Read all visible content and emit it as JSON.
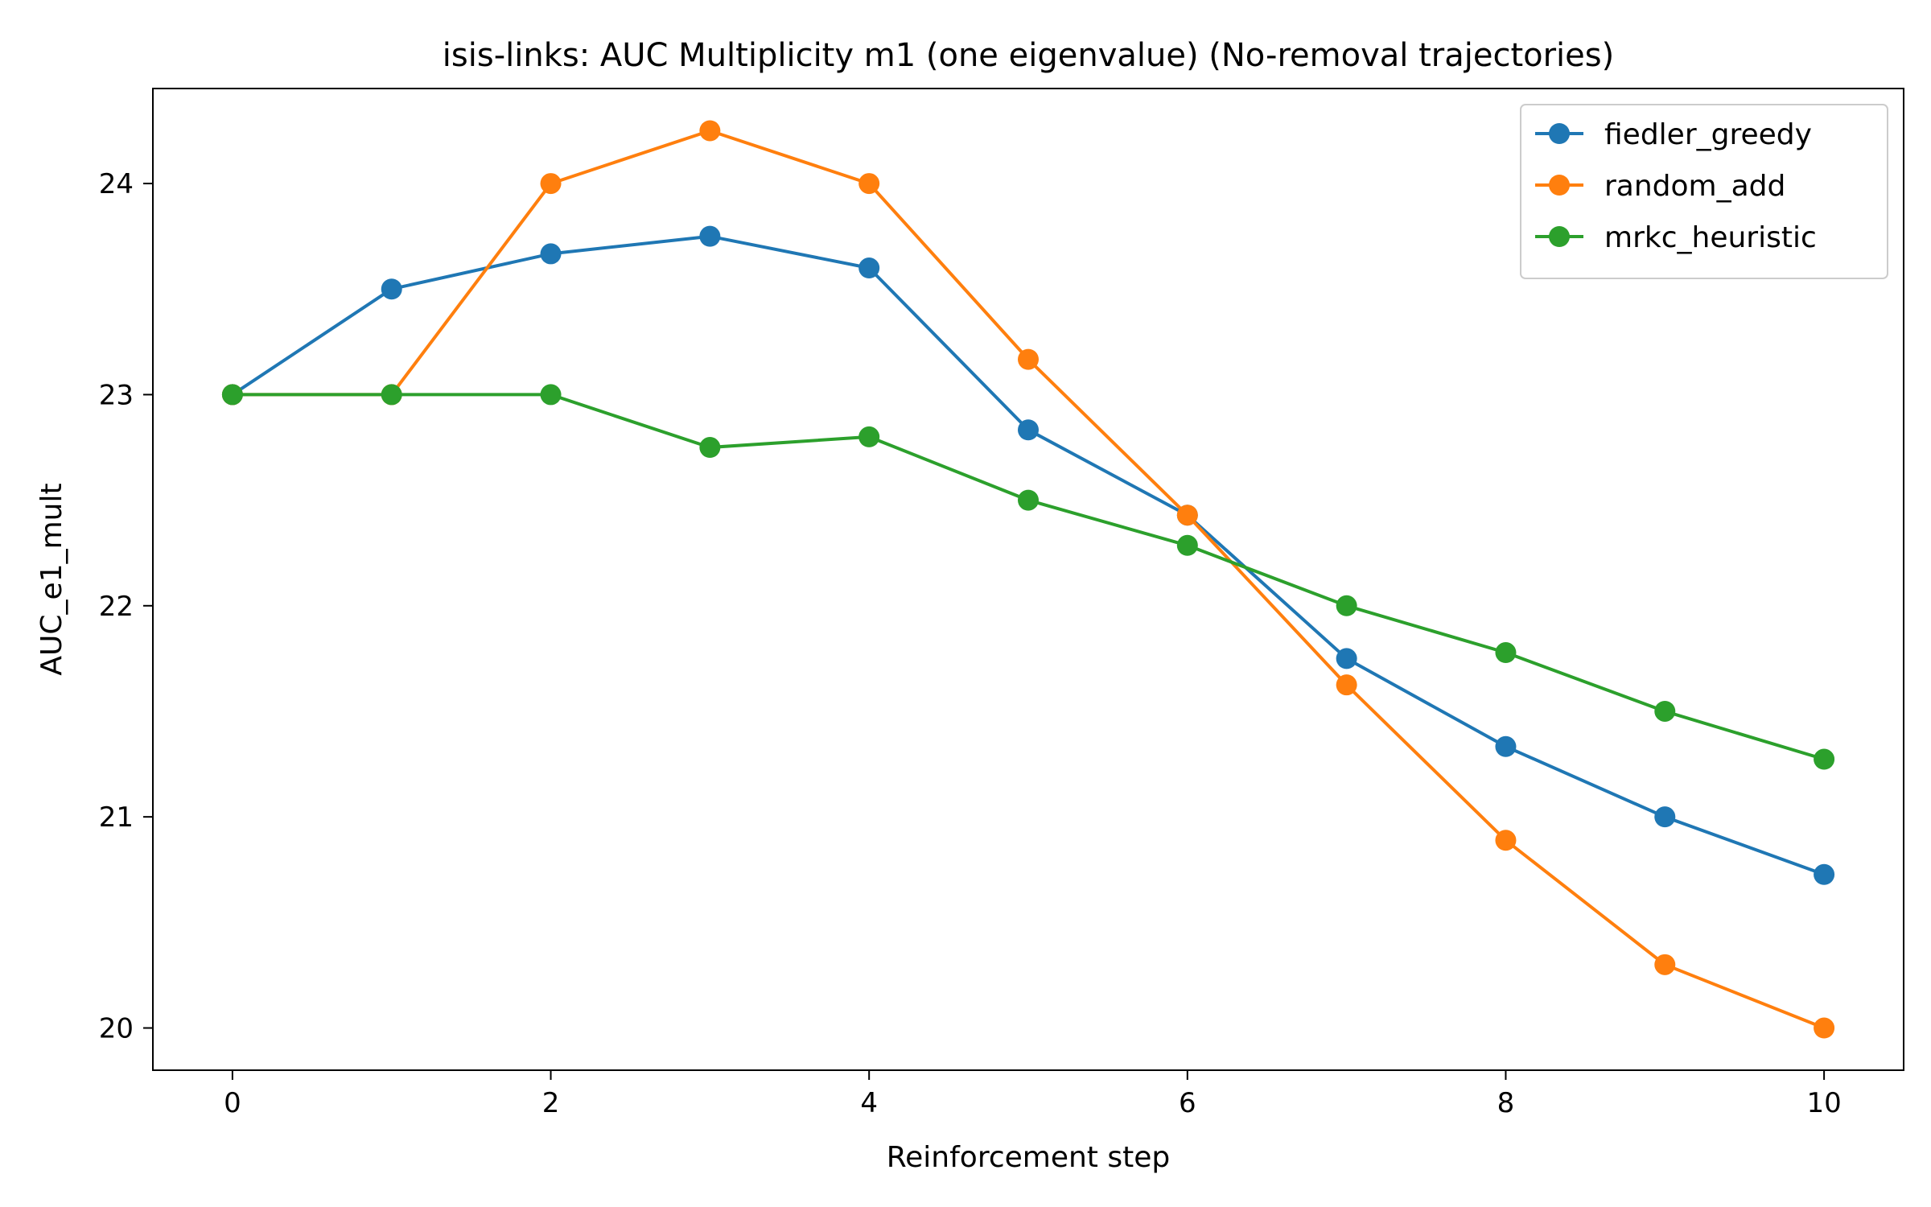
{
  "chart_data": {
    "type": "line",
    "title": "isis-links: AUC Multiplicity m1 (one eigenvalue) (No-removal trajectories)",
    "xlabel": "Reinforcement step",
    "ylabel": "AUC_e1_mult",
    "xlim": [
      -0.5,
      10.5
    ],
    "ylim": [
      19.8,
      24.45
    ],
    "xticks": [
      0,
      2,
      4,
      6,
      8,
      10
    ],
    "yticks": [
      20,
      21,
      22,
      23,
      24
    ],
    "grid": false,
    "legend_position": "top-right",
    "x": [
      0,
      1,
      2,
      3,
      4,
      5,
      6,
      7,
      8,
      9,
      10
    ],
    "series": [
      {
        "name": "fiedler_greedy",
        "color": "#1f77b4",
        "marker": "circle",
        "values": [
          23.0,
          23.5,
          23.667,
          23.75,
          23.6,
          22.833,
          22.429,
          21.75,
          21.333,
          21.0,
          20.727
        ]
      },
      {
        "name": "random_add",
        "color": "#ff7f0e",
        "marker": "circle",
        "values": [
          23.0,
          23.0,
          24.0,
          24.25,
          24.0,
          23.167,
          22.429,
          21.625,
          20.889,
          20.3,
          20.0
        ]
      },
      {
        "name": "mrkc_heuristic",
        "color": "#2ca02c",
        "marker": "circle",
        "values": [
          23.0,
          23.0,
          23.0,
          22.75,
          22.8,
          22.5,
          22.286,
          22.0,
          21.778,
          21.5,
          21.273
        ]
      }
    ]
  }
}
